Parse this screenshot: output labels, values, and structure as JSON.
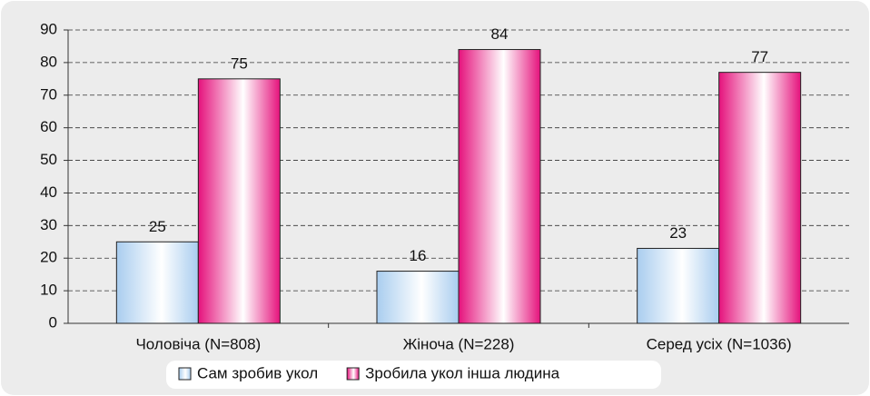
{
  "chart_data": {
    "type": "bar",
    "categories": [
      "Чоловіча (N=808)",
      "Жіноча (N=228)",
      "Серед усіх (N=1036)"
    ],
    "series": [
      {
        "name": "Сам зробив укол",
        "color": "#a9cdef",
        "values": [
          25,
          16,
          23
        ]
      },
      {
        "name": "Зробила укол інша людина",
        "color": "#e5127c",
        "values": [
          75,
          84,
          77
        ]
      }
    ],
    "ylim": [
      0,
      90
    ],
    "yticks": [
      0,
      10,
      20,
      30,
      40,
      50,
      60,
      70,
      80,
      90
    ],
    "grid": true,
    "legend": "bottom"
  }
}
